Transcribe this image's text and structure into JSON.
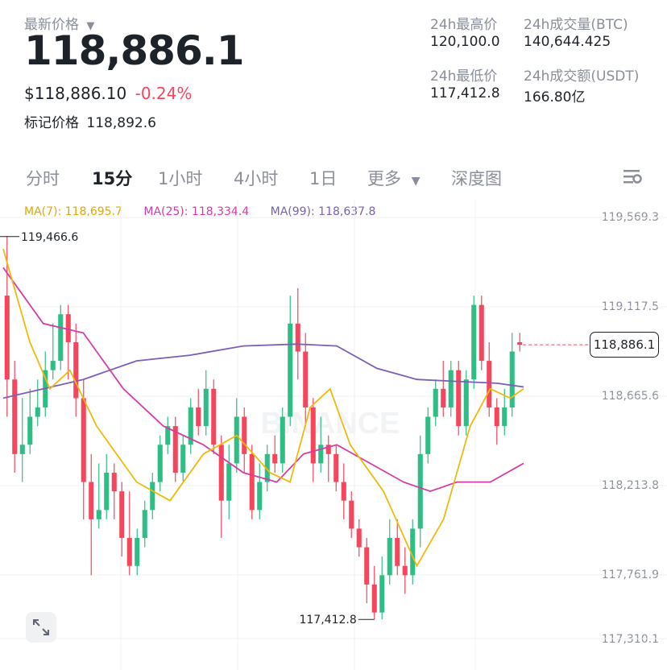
{
  "header": {
    "latest_price_label": "最新价格",
    "latest_price": "118,886.1",
    "usd_price": "$118,886.10",
    "change_percent": "-0.24%",
    "mark_price_label": "标记价格",
    "mark_price": "118,892.6"
  },
  "stats": {
    "high_label": "24h最高价",
    "high_value": "120,100.0",
    "volume_btc_label": "24h成交量(BTC)",
    "volume_btc_value": "140,644.425",
    "low_label": "24h最低价",
    "low_value": "117,412.8",
    "volume_usdt_label": "24h成交额(USDT)",
    "volume_usdt_value": "166.80亿"
  },
  "tabs": {
    "time_sharing": "分时",
    "m15": "15分",
    "h1": "1小时",
    "h4": "4小时",
    "d1": "1日",
    "more": "更多",
    "depth": "深度图",
    "active": "15分"
  },
  "ma": {
    "ma7_label": "MA(7): 118,695.7",
    "ma25_label": "MA(25): 118,334.4",
    "ma99_label": "MA(99): 118,637.8",
    "ma7_color": "#f0b90b",
    "ma25_color": "#d63ca6",
    "ma99_color": "#7c5fb8"
  },
  "colors": {
    "up": "#2ebd85",
    "down": "#f6465d",
    "text_primary": "#1e2329",
    "text_secondary": "#8a8f99"
  },
  "chart_data": {
    "type": "candlestick",
    "price_axis_labels": [
      "119,569.3",
      "119,117.5",
      "118,665.6",
      "118,213.8",
      "117,761.9",
      "117,310.1"
    ],
    "current_price_tag": "118,886.1",
    "max_annotation": "119,466.6",
    "min_annotation": "117,412.8",
    "watermark": "BINANCE",
    "ylim": [
      117310.1,
      119569.3
    ],
    "candles": [
      {
        "o": 119150,
        "c": 118700,
        "h": 119470,
        "l": 118500
      },
      {
        "o": 118700,
        "c": 118300,
        "h": 118800,
        "l": 118200
      },
      {
        "o": 118300,
        "c": 118350,
        "h": 118600,
        "l": 118150
      },
      {
        "o": 118350,
        "c": 118500,
        "h": 118650,
        "l": 118300
      },
      {
        "o": 118500,
        "c": 118550,
        "h": 118700,
        "l": 118450
      },
      {
        "o": 118550,
        "c": 118750,
        "h": 118850,
        "l": 118500
      },
      {
        "o": 118750,
        "c": 118800,
        "h": 119000,
        "l": 118700
      },
      {
        "o": 118800,
        "c": 119050,
        "h": 119100,
        "l": 118750
      },
      {
        "o": 119050,
        "c": 118900,
        "h": 119100,
        "l": 118700
      },
      {
        "o": 118900,
        "c": 118600,
        "h": 119000,
        "l": 118500
      },
      {
        "o": 118600,
        "c": 118150,
        "h": 118700,
        "l": 117950
      },
      {
        "o": 118150,
        "c": 117950,
        "h": 118300,
        "l": 117650
      },
      {
        "o": 117950,
        "c": 118000,
        "h": 118250,
        "l": 117900
      },
      {
        "o": 118000,
        "c": 118200,
        "h": 118300,
        "l": 117950
      },
      {
        "o": 118200,
        "c": 118100,
        "h": 118250,
        "l": 117950
      },
      {
        "o": 118100,
        "c": 117850,
        "h": 118150,
        "l": 117750
      },
      {
        "o": 117850,
        "c": 117700,
        "h": 118100,
        "l": 117650
      },
      {
        "o": 117700,
        "c": 117850,
        "h": 117900,
        "l": 117650
      },
      {
        "o": 117850,
        "c": 118000,
        "h": 118050,
        "l": 117800
      },
      {
        "o": 118000,
        "c": 118150,
        "h": 118200,
        "l": 117950
      },
      {
        "o": 118150,
        "c": 118350,
        "h": 118400,
        "l": 118100
      },
      {
        "o": 118350,
        "c": 118450,
        "h": 118500,
        "l": 118300
      },
      {
        "o": 118450,
        "c": 118200,
        "h": 118500,
        "l": 118150
      },
      {
        "o": 118200,
        "c": 118350,
        "h": 118400,
        "l": 118150
      },
      {
        "o": 118350,
        "c": 118550,
        "h": 118600,
        "l": 118300
      },
      {
        "o": 118550,
        "c": 118450,
        "h": 118650,
        "l": 118400
      },
      {
        "o": 118450,
        "c": 118650,
        "h": 118750,
        "l": 118400
      },
      {
        "o": 118650,
        "c": 118350,
        "h": 118700,
        "l": 118300
      },
      {
        "o": 118350,
        "c": 118050,
        "h": 118400,
        "l": 117850
      },
      {
        "o": 118050,
        "c": 118250,
        "h": 118350,
        "l": 117950
      },
      {
        "o": 118250,
        "c": 118500,
        "h": 118600,
        "l": 118200
      },
      {
        "o": 118500,
        "c": 118300,
        "h": 118550,
        "l": 118200
      },
      {
        "o": 118300,
        "c": 118000,
        "h": 118350,
        "l": 117950
      },
      {
        "o": 118000,
        "c": 118150,
        "h": 118250,
        "l": 117950
      },
      {
        "o": 118150,
        "c": 118300,
        "h": 118350,
        "l": 118100
      },
      {
        "o": 118300,
        "c": 118250,
        "h": 118400,
        "l": 118200
      },
      {
        "o": 118250,
        "c": 118500,
        "h": 118550,
        "l": 118200
      },
      {
        "o": 118500,
        "c": 119000,
        "h": 119150,
        "l": 118450
      },
      {
        "o": 119000,
        "c": 118850,
        "h": 119190,
        "l": 118700
      },
      {
        "o": 118850,
        "c": 118550,
        "h": 118950,
        "l": 118450
      },
      {
        "o": 118550,
        "c": 118250,
        "h": 118600,
        "l": 118150
      },
      {
        "o": 118250,
        "c": 118350,
        "h": 118500,
        "l": 118200
      },
      {
        "o": 118350,
        "c": 118300,
        "h": 118400,
        "l": 118150
      },
      {
        "o": 118300,
        "c": 118150,
        "h": 118350,
        "l": 118100
      },
      {
        "o": 118150,
        "c": 118050,
        "h": 118250,
        "l": 117950
      },
      {
        "o": 118050,
        "c": 117900,
        "h": 118100,
        "l": 117850
      },
      {
        "o": 117900,
        "c": 117800,
        "h": 117950,
        "l": 117750
      },
      {
        "o": 117800,
        "c": 117600,
        "h": 117850,
        "l": 117500
      },
      {
        "o": 117600,
        "c": 117450,
        "h": 117700,
        "l": 117413
      },
      {
        "o": 117450,
        "c": 117650,
        "h": 117750,
        "l": 117413
      },
      {
        "o": 117650,
        "c": 117850,
        "h": 117950,
        "l": 117600
      },
      {
        "o": 117850,
        "c": 117700,
        "h": 117950,
        "l": 117650
      },
      {
        "o": 117700,
        "c": 117650,
        "h": 117800,
        "l": 117550
      },
      {
        "o": 117650,
        "c": 117900,
        "h": 117950,
        "l": 117600
      },
      {
        "o": 117900,
        "c": 118300,
        "h": 118400,
        "l": 117800
      },
      {
        "o": 118300,
        "c": 118500,
        "h": 118550,
        "l": 118250
      },
      {
        "o": 118500,
        "c": 118650,
        "h": 118700,
        "l": 118450
      },
      {
        "o": 118650,
        "c": 118550,
        "h": 118800,
        "l": 118500
      },
      {
        "o": 118550,
        "c": 118750,
        "h": 118800,
        "l": 118500
      },
      {
        "o": 118750,
        "c": 118450,
        "h": 118800,
        "l": 118400
      },
      {
        "o": 118450,
        "c": 118700,
        "h": 118750,
        "l": 118400
      },
      {
        "o": 118700,
        "c": 119100,
        "h": 119150,
        "l": 118650
      },
      {
        "o": 119100,
        "c": 118800,
        "h": 119150,
        "l": 118750
      },
      {
        "o": 118800,
        "c": 118550,
        "h": 118900,
        "l": 118500
      },
      {
        "o": 118550,
        "c": 118450,
        "h": 118600,
        "l": 118350
      },
      {
        "o": 118450,
        "c": 118550,
        "h": 118650,
        "l": 118400
      },
      {
        "o": 118550,
        "c": 118850,
        "h": 118950,
        "l": 118500
      },
      {
        "o": 118900,
        "c": 118886,
        "h": 118950,
        "l": 118850
      }
    ],
    "ma7": [
      [
        0,
        119400
      ],
      [
        0.04,
        118900
      ],
      [
        0.07,
        118650
      ],
      [
        0.1,
        118750
      ],
      [
        0.14,
        118450
      ],
      [
        0.2,
        118150
      ],
      [
        0.25,
        118050
      ],
      [
        0.3,
        118300
      ],
      [
        0.35,
        118400
      ],
      [
        0.4,
        118200
      ],
      [
        0.43,
        118150
      ],
      [
        0.46,
        118550
      ],
      [
        0.49,
        118650
      ],
      [
        0.52,
        118350
      ],
      [
        0.57,
        118100
      ],
      [
        0.62,
        117700
      ],
      [
        0.66,
        117950
      ],
      [
        0.7,
        118450
      ],
      [
        0.73,
        118650
      ],
      [
        0.76,
        118600
      ],
      [
        0.78,
        118650
      ]
    ],
    "ma25": [
      [
        0,
        119300
      ],
      [
        0.06,
        119000
      ],
      [
        0.12,
        118950
      ],
      [
        0.18,
        118650
      ],
      [
        0.24,
        118450
      ],
      [
        0.3,
        118350
      ],
      [
        0.36,
        118200
      ],
      [
        0.41,
        118150
      ],
      [
        0.45,
        118300
      ],
      [
        0.5,
        118350
      ],
      [
        0.55,
        118250
      ],
      [
        0.6,
        118150
      ],
      [
        0.64,
        118100
      ],
      [
        0.68,
        118150
      ],
      [
        0.73,
        118150
      ],
      [
        0.78,
        118250
      ]
    ],
    "ma99": [
      [
        0,
        118600
      ],
      [
        0.12,
        118700
      ],
      [
        0.2,
        118800
      ],
      [
        0.28,
        118830
      ],
      [
        0.36,
        118880
      ],
      [
        0.44,
        118890
      ],
      [
        0.5,
        118880
      ],
      [
        0.56,
        118760
      ],
      [
        0.62,
        118700
      ],
      [
        0.68,
        118690
      ],
      [
        0.74,
        118680
      ],
      [
        0.78,
        118660
      ]
    ]
  }
}
